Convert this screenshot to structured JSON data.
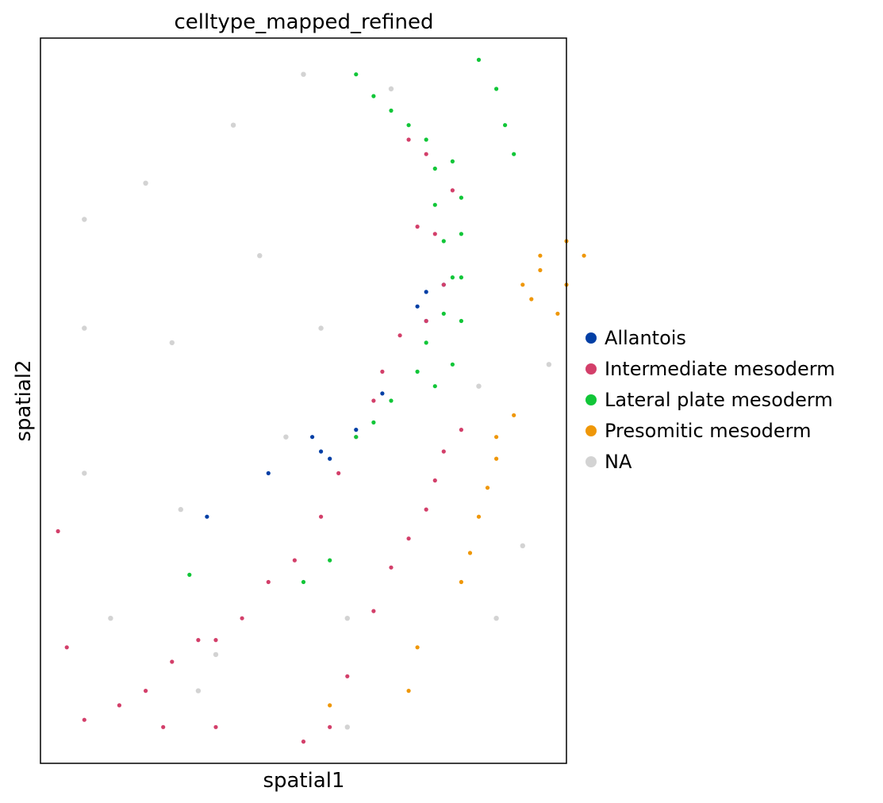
{
  "chart_data": {
    "type": "scatter",
    "title": "celltype_mapped_refined",
    "xlabel": "spatial1",
    "ylabel": "spatial2",
    "grid": false,
    "ticks": false,
    "legend_position": "right",
    "series": [
      {
        "name": "Allantois",
        "color": "#023fa5",
        "points": [
          [
            43,
            63
          ],
          [
            44,
            65
          ],
          [
            46,
            66
          ],
          [
            44,
            61
          ],
          [
            39,
            51
          ],
          [
            36,
            46
          ],
          [
            33,
            42
          ],
          [
            32,
            43
          ],
          [
            31,
            45
          ],
          [
            26,
            40
          ],
          [
            19,
            34
          ]
        ]
      },
      {
        "name": "Intermediate mesoderm",
        "color": "#d33f6a",
        "points": [
          [
            42,
            86
          ],
          [
            44,
            84
          ],
          [
            47,
            79
          ],
          [
            43,
            74
          ],
          [
            45,
            73
          ],
          [
            46,
            66
          ],
          [
            44,
            61
          ],
          [
            41,
            59
          ],
          [
            39,
            54
          ],
          [
            38,
            50
          ],
          [
            36,
            45
          ],
          [
            34,
            40
          ],
          [
            32,
            34
          ],
          [
            29,
            28
          ],
          [
            26,
            25
          ],
          [
            23,
            20
          ],
          [
            20,
            17
          ],
          [
            18,
            17
          ],
          [
            15,
            14
          ],
          [
            12,
            10
          ],
          [
            9,
            8
          ],
          [
            5,
            6
          ],
          [
            2,
            32
          ],
          [
            48,
            46
          ],
          [
            46,
            43
          ],
          [
            45,
            39
          ],
          [
            44,
            35
          ],
          [
            42,
            31
          ],
          [
            40,
            27
          ],
          [
            38,
            21
          ],
          [
            35,
            12
          ],
          [
            33,
            5
          ],
          [
            30,
            3
          ],
          [
            20,
            5
          ],
          [
            14,
            5
          ],
          [
            3,
            16
          ]
        ]
      },
      {
        "name": "Lateral plate mesoderm",
        "color": "#11c638",
        "points": [
          [
            36,
            95
          ],
          [
            38,
            92
          ],
          [
            40,
            90
          ],
          [
            42,
            88
          ],
          [
            44,
            86
          ],
          [
            45,
            82
          ],
          [
            45,
            77
          ],
          [
            46,
            72
          ],
          [
            47,
            67
          ],
          [
            46,
            62
          ],
          [
            44,
            58
          ],
          [
            43,
            54
          ],
          [
            45,
            52
          ],
          [
            47,
            55
          ],
          [
            48,
            61
          ],
          [
            48,
            67
          ],
          [
            48,
            73
          ],
          [
            48,
            78
          ],
          [
            47,
            83
          ],
          [
            50,
            97
          ],
          [
            52,
            93
          ],
          [
            53,
            88
          ],
          [
            54,
            84
          ],
          [
            40,
            50
          ],
          [
            38,
            47
          ],
          [
            36,
            45
          ],
          [
            33,
            28
          ],
          [
            30,
            25
          ],
          [
            17,
            26
          ]
        ]
      },
      {
        "name": "Presomitic mesoderm",
        "color": "#ef9708",
        "points": [
          [
            57,
            70
          ],
          [
            60,
            72
          ],
          [
            62,
            70
          ],
          [
            60,
            66
          ],
          [
            59,
            62
          ],
          [
            57,
            68
          ],
          [
            55,
            66
          ],
          [
            56,
            64
          ],
          [
            54,
            48
          ],
          [
            52,
            45
          ],
          [
            52,
            42
          ],
          [
            51,
            38
          ],
          [
            50,
            34
          ],
          [
            49,
            29
          ],
          [
            33,
            8
          ],
          [
            42,
            10
          ],
          [
            43,
            16
          ],
          [
            48,
            25
          ]
        ]
      },
      {
        "name": "NA",
        "color": "#d3d3d3",
        "points": [
          [
            5,
            75
          ],
          [
            5,
            60
          ],
          [
            5,
            40
          ],
          [
            8,
            20
          ],
          [
            12,
            80
          ],
          [
            15,
            58
          ],
          [
            16,
            35
          ],
          [
            18,
            10
          ],
          [
            20,
            15
          ],
          [
            22,
            88
          ],
          [
            25,
            70
          ],
          [
            28,
            45
          ],
          [
            30,
            95
          ],
          [
            32,
            60
          ],
          [
            35,
            20
          ],
          [
            35,
            5
          ],
          [
            40,
            93
          ],
          [
            52,
            20
          ],
          [
            55,
            30
          ],
          [
            58,
            55
          ],
          [
            50,
            52
          ]
        ]
      }
    ]
  },
  "legend": {
    "items": [
      {
        "label": "Allantois",
        "color": "#023fa5"
      },
      {
        "label": "Intermediate mesoderm",
        "color": "#d33f6a"
      },
      {
        "label": "Lateral plate mesoderm",
        "color": "#11c638"
      },
      {
        "label": "Presomitic mesoderm",
        "color": "#ef9708"
      },
      {
        "label": "NA",
        "color": "#d3d3d3"
      }
    ]
  }
}
